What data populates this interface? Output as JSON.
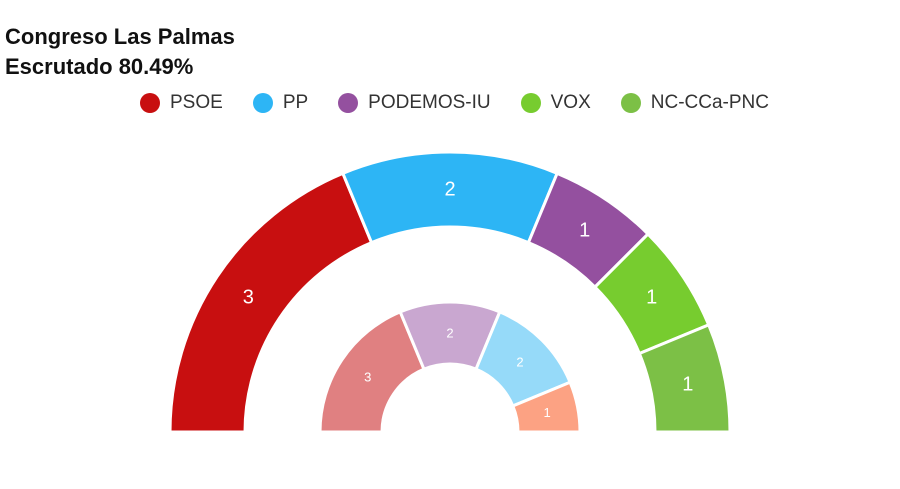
{
  "header": {
    "title": "Congreso Las Palmas",
    "subtitle": "Escrutado 80.49%"
  },
  "legend": [
    {
      "label": "PSOE",
      "color": "#c80f10"
    },
    {
      "label": "PP",
      "color": "#2db5f5"
    },
    {
      "label": "PODEMOS-IU",
      "color": "#94509f"
    },
    {
      "label": "VOX",
      "color": "#77cc2f"
    },
    {
      "label": "NC-CCa-PNC",
      "color": "#7cc046"
    }
  ],
  "chart_data": [
    {
      "type": "pie",
      "series": [
        {
          "name": "PSOE",
          "value": 3,
          "color": "#c80f10"
        },
        {
          "name": "PP",
          "value": 2,
          "color": "#2db5f5"
        },
        {
          "name": "PODEMOS-IU",
          "value": 1,
          "color": "#94509f"
        },
        {
          "name": "VOX",
          "value": 1,
          "color": "#77cc2f"
        },
        {
          "name": "NC-CCa-PNC",
          "value": 1,
          "color": "#7cc046"
        }
      ]
    },
    {
      "type": "pie",
      "series": [
        {
          "value": 3,
          "color": "#e08081"
        },
        {
          "value": 2,
          "color": "#c9a7d0"
        },
        {
          "value": 2,
          "color": "#96daf9"
        },
        {
          "value": 1,
          "color": "#fca283"
        }
      ]
    }
  ]
}
